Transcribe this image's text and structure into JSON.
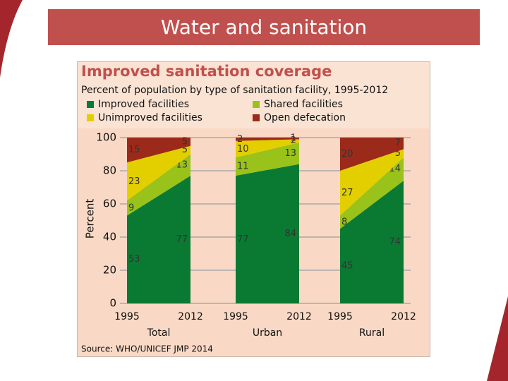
{
  "slide_title": "Water and sanitation",
  "chart_data": {
    "type": "area",
    "title": "Improved sanitation coverage",
    "subtitle": "Percent of population by type of sanitation facility, 1995-2012",
    "ylabel": "Percent",
    "source": "Source:  WHO/UNICEF JMP 2014",
    "ylim": [
      0,
      100
    ],
    "yticks": [
      0,
      20,
      40,
      60,
      80,
      100
    ],
    "grid": true,
    "series": [
      {
        "name": "Improved facilities",
        "color": "#0a7a33"
      },
      {
        "name": "Shared facilities",
        "color": "#99c31a"
      },
      {
        "name": "Unimproved facilities",
        "color": "#e3cf00"
      },
      {
        "name": "Open defecation",
        "color": "#9c2a1b"
      }
    ],
    "panels": [
      {
        "label": "Total",
        "x": [
          "1995",
          "2012"
        ],
        "series": [
          {
            "values": [
              53,
              77
            ]
          },
          {
            "values": [
              9,
              13
            ]
          },
          {
            "values": [
              23,
              5
            ]
          },
          {
            "values": [
              15,
              5
            ]
          }
        ]
      },
      {
        "label": "Urban",
        "x": [
          "1995",
          "2012"
        ],
        "series": [
          {
            "values": [
              77,
              84
            ]
          },
          {
            "values": [
              11,
              13
            ]
          },
          {
            "values": [
              10,
              2
            ]
          },
          {
            "values": [
              2,
              1
            ]
          }
        ]
      },
      {
        "label": "Rural",
        "x": [
          "1995",
          "2012"
        ],
        "series": [
          {
            "values": [
              45,
              74
            ]
          },
          {
            "values": [
              8,
              14
            ]
          },
          {
            "values": [
              27,
              5
            ]
          },
          {
            "values": [
              20,
              7
            ]
          }
        ]
      }
    ]
  }
}
